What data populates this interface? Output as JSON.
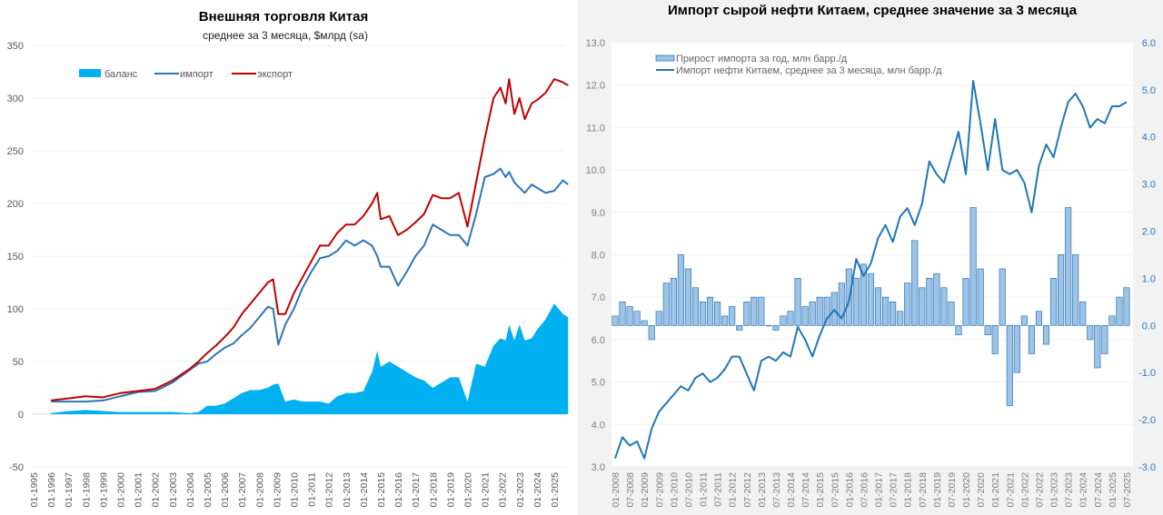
{
  "chart_data": [
    {
      "type": "line",
      "title": "Внешняя торговля Китая",
      "subtitle": "среднее за 3 месяца, $млрд (sa)",
      "xlabel": "",
      "ylabel": "",
      "ylim": [
        -50,
        350
      ],
      "yticks": [
        "-50",
        "0",
        "50",
        "100",
        "150",
        "200",
        "250",
        "300",
        "350"
      ],
      "ytick_values": [
        -50,
        0,
        50,
        100,
        150,
        200,
        250,
        300,
        350
      ],
      "xlim": [
        1995,
        2025.9
      ],
      "xticks": [
        "01-1995",
        "01-1996",
        "01-1997",
        "01-1998",
        "01-1999",
        "01-2000",
        "01-2001",
        "01-2002",
        "01-2003",
        "01-2004",
        "01-2005",
        "01-2006",
        "01-2007",
        "01-2008",
        "01-2009",
        "01-2010",
        "01-2011",
        "01-2012",
        "01-2013",
        "01-2014",
        "01-2015",
        "01-2016",
        "01-2017",
        "01-2018",
        "01-2019",
        "01-2020",
        "01-2021",
        "01-2022",
        "01-2023",
        "01-2024",
        "01-2025"
      ],
      "grid": true,
      "legend_position": "top-left",
      "x": [
        1996.0,
        1997.0,
        1998.0,
        1999.0,
        2000.0,
        2001.0,
        2002.0,
        2003.0,
        2004.0,
        2004.5,
        2005.0,
        2005.5,
        2006.0,
        2006.5,
        2007.0,
        2007.5,
        2008.0,
        2008.5,
        2008.8,
        2009.1,
        2009.5,
        2010.0,
        2010.5,
        2011.0,
        2011.5,
        2012.0,
        2012.5,
        2013.0,
        2013.5,
        2014.0,
        2014.5,
        2014.8,
        2015.0,
        2015.5,
        2016.0,
        2016.5,
        2017.0,
        2017.5,
        2018.0,
        2018.5,
        2019.0,
        2019.5,
        2020.0,
        2020.5,
        2021.0,
        2021.5,
        2021.9,
        2022.2,
        2022.4,
        2022.7,
        2023.0,
        2023.3,
        2023.7,
        2024.0,
        2024.5,
        2025.0,
        2025.5,
        2025.8
      ],
      "series": [
        {
          "name": "баланс",
          "kind": "area",
          "color": "#00b0f0",
          "values": [
            1,
            3,
            4,
            3,
            2,
            2,
            2,
            2,
            1,
            2,
            8,
            8,
            10,
            15,
            20,
            23,
            23,
            25,
            28,
            29,
            12,
            14,
            12,
            12,
            12,
            10,
            17,
            20,
            20,
            22,
            40,
            60,
            45,
            50,
            45,
            40,
            35,
            32,
            25,
            30,
            35,
            35,
            12,
            48,
            45,
            65,
            72,
            70,
            85,
            70,
            85,
            70,
            72,
            80,
            90,
            105,
            95,
            92
          ]
        },
        {
          "name": "импорт",
          "kind": "line",
          "color": "#2e75b6",
          "values": [
            12,
            12,
            12,
            13,
            17,
            21,
            22,
            30,
            42,
            48,
            50,
            57,
            63,
            67,
            75,
            82,
            92,
            102,
            100,
            66,
            85,
            100,
            120,
            135,
            148,
            150,
            155,
            165,
            160,
            165,
            160,
            150,
            140,
            140,
            122,
            135,
            150,
            160,
            180,
            175,
            170,
            170,
            160,
            190,
            225,
            228,
            233,
            225,
            230,
            220,
            215,
            210,
            218,
            215,
            210,
            212,
            222,
            218
          ]
        },
        {
          "name": "экспорт",
          "kind": "line",
          "color": "#c00000",
          "values": [
            13,
            15,
            17,
            16,
            20,
            22,
            24,
            32,
            43,
            50,
            58,
            65,
            73,
            82,
            95,
            105,
            115,
            125,
            128,
            95,
            95,
            115,
            130,
            145,
            160,
            160,
            172,
            180,
            180,
            188,
            200,
            210,
            185,
            188,
            170,
            175,
            182,
            190,
            208,
            205,
            205,
            210,
            178,
            220,
            262,
            300,
            310,
            295,
            318,
            285,
            300,
            280,
            295,
            298,
            305,
            318,
            315,
            312
          ]
        }
      ]
    },
    {
      "type": "bar+line",
      "title": "Импорт сырой нефти Китаем, среднее значение за 3 месяца",
      "xlabel": "",
      "ylabel": "",
      "ylim": [
        3.0,
        13.0
      ],
      "yticks": [
        "3.0",
        "4.0",
        "5.0",
        "6.0",
        "7.0",
        "8.0",
        "9.0",
        "10.0",
        "11.0",
        "12.0",
        "13.0"
      ],
      "ytick_values": [
        3,
        4,
        5,
        6,
        7,
        8,
        9,
        10,
        11,
        12,
        13
      ],
      "y2lim": [
        -3.0,
        6.0
      ],
      "y2ticks": [
        "-3.0",
        "-2.0",
        "-1.0",
        "0.0",
        "1.0",
        "2.0",
        "3.0",
        "4.0",
        "5.0",
        "6.0"
      ],
      "y2tick_values": [
        -3,
        -2,
        -1,
        0,
        1,
        2,
        3,
        4,
        5,
        6
      ],
      "xlim": [
        2008.0,
        2025.75
      ],
      "xticks": [
        "01-2008",
        "07-2008",
        "01-2009",
        "07-2009",
        "01-2010",
        "07-2010",
        "01-2011",
        "07-2011",
        "01-2012",
        "07-2012",
        "01-2013",
        "07-2013",
        "01-2014",
        "07-2014",
        "01-2015",
        "07-2015",
        "01-2016",
        "07-2016",
        "01-2017",
        "07-2017",
        "01-2018",
        "07-2018",
        "01-2019",
        "07-2019",
        "01-2020",
        "07-2020",
        "01-2021",
        "07-2021",
        "01-2022",
        "07-2022",
        "01-2023",
        "07-2023",
        "01-2024",
        "07-2024",
        "01-2025",
        "07-2025"
      ],
      "grid": true,
      "legend_position": "top-left",
      "x_start": 2008.0,
      "x_step": 0.25,
      "series": [
        {
          "name": "Прирост импорта за год, млн барр./д",
          "kind": "bar",
          "axis": "right",
          "color": "#9dc3e6",
          "values": [
            0.2,
            0.5,
            0.4,
            0.3,
            0.1,
            -0.3,
            0.3,
            0.9,
            1.0,
            1.5,
            1.2,
            0.8,
            0.5,
            0.6,
            0.5,
            0.2,
            0.4,
            -0.1,
            0.5,
            0.6,
            0.6,
            0.0,
            -0.1,
            0.2,
            0.3,
            1.0,
            0.4,
            0.5,
            0.6,
            0.6,
            0.7,
            0.9,
            1.2,
            1.0,
            1.3,
            1.1,
            0.8,
            0.6,
            0.5,
            0.3,
            0.9,
            1.8,
            0.8,
            1.0,
            1.1,
            0.8,
            0.5,
            -0.2,
            1.0,
            2.5,
            1.2,
            -0.2,
            -0.6,
            1.2,
            -1.7,
            -1.0,
            0.2,
            -0.6,
            0.3,
            -0.4,
            1.0,
            1.5,
            2.5,
            1.5,
            0.5,
            -0.3,
            -0.9,
            -0.6,
            0.2,
            0.6,
            0.8
          ]
        },
        {
          "name": "Импорт нефти Китаем, среднее за 3 месяца, млн барр./д",
          "kind": "line",
          "axis": "left",
          "color": "#1f77b4",
          "values": [
            3.2,
            3.7,
            3.5,
            3.6,
            3.2,
            3.9,
            4.3,
            4.5,
            4.7,
            4.9,
            4.8,
            5.1,
            5.2,
            5.0,
            5.1,
            5.3,
            5.6,
            5.6,
            5.2,
            4.8,
            5.5,
            5.6,
            5.5,
            5.7,
            5.6,
            6.3,
            6.0,
            5.6,
            6.1,
            6.5,
            6.7,
            6.5,
            6.9,
            7.9,
            7.5,
            7.8,
            8.4,
            8.7,
            8.3,
            8.9,
            9.1,
            8.7,
            9.2,
            10.2,
            9.9,
            9.7,
            10.3,
            10.9,
            9.9,
            12.1,
            11.1,
            10.0,
            11.2,
            10.0,
            9.9,
            10.0,
            9.7,
            9.0,
            10.1,
            10.6,
            10.3,
            11.0,
            11.6,
            11.8,
            11.5,
            11.0,
            11.2,
            11.1,
            11.5,
            11.5,
            11.6
          ]
        }
      ]
    }
  ]
}
